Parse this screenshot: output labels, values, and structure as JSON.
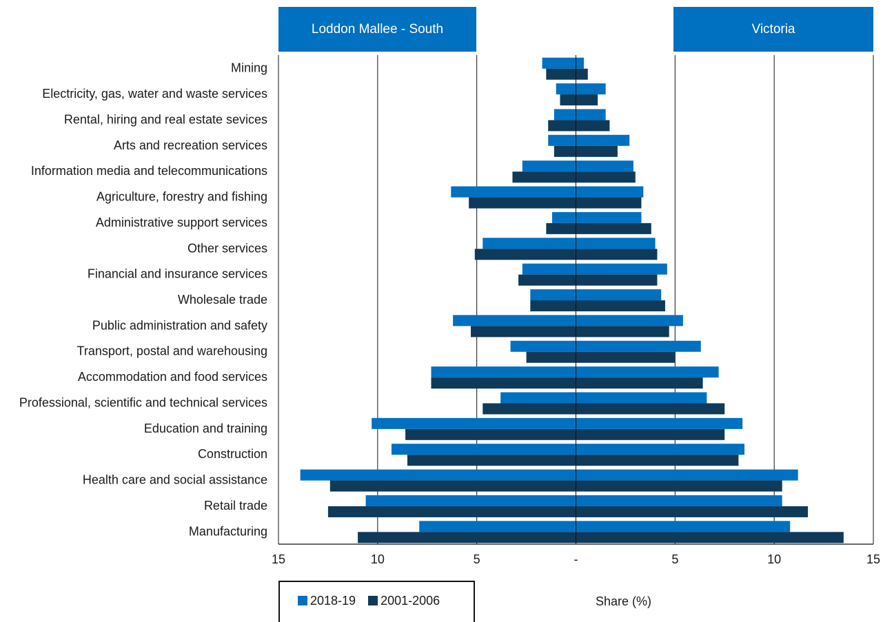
{
  "header": {
    "left_region": "Loddon Mallee - South",
    "right_region": "Victoria"
  },
  "legend": {
    "series_a": "2018-19",
    "series_b": "2001-2006"
  },
  "colors": {
    "series_a": "#0070c0",
    "series_b": "#0f3a5a"
  },
  "chart_data": {
    "type": "bar",
    "orientation": "horizontal-butterfly",
    "xlabel": "Share (%)",
    "xlim": [
      -15,
      15
    ],
    "x_ticks": [
      -15,
      -10,
      -5,
      0,
      5,
      10,
      15
    ],
    "x_tick_labels": [
      "15",
      "10",
      "5",
      "-",
      "5",
      "10",
      "15"
    ],
    "categories": [
      "Mining",
      "Electricity, gas, water and waste services",
      "Rental, hiring and real estate sevices",
      "Arts and recreation services",
      "Information media and telecommunications",
      "Agriculture, forestry and fishing",
      "Administrative support services",
      "Other services",
      "Financial and insurance services",
      "Wholesale trade",
      "Public administration and safety",
      "Transport, postal and warehousing",
      "Accommodation and food services",
      "Professional, scientific and technical services",
      "Education and training",
      "Construction",
      "Health care and social assistance",
      "Retail trade",
      "Manufacturing"
    ],
    "series": [
      {
        "name": "2018-19",
        "loddon_mallee_south": [
          1.7,
          1.0,
          1.1,
          1.4,
          2.7,
          6.3,
          1.2,
          4.7,
          2.7,
          2.3,
          6.2,
          3.3,
          7.3,
          3.8,
          10.3,
          9.3,
          13.9,
          10.6,
          7.9
        ],
        "victoria": [
          0.4,
          1.5,
          1.5,
          2.7,
          2.9,
          3.4,
          3.3,
          4.0,
          4.6,
          4.3,
          5.4,
          6.3,
          7.2,
          6.6,
          8.4,
          8.5,
          11.2,
          10.4,
          10.8
        ]
      },
      {
        "name": "2001-2006",
        "loddon_mallee_south": [
          1.5,
          0.8,
          1.4,
          1.1,
          3.2,
          5.4,
          1.5,
          5.1,
          2.9,
          2.3,
          5.3,
          2.5,
          7.3,
          4.7,
          8.6,
          8.5,
          12.4,
          12.5,
          11.0
        ],
        "victoria": [
          0.6,
          1.1,
          1.7,
          2.1,
          3.0,
          3.3,
          3.8,
          4.1,
          4.1,
          4.5,
          4.7,
          5.0,
          6.4,
          7.5,
          7.5,
          8.2,
          10.4,
          11.7,
          13.5
        ]
      }
    ]
  }
}
